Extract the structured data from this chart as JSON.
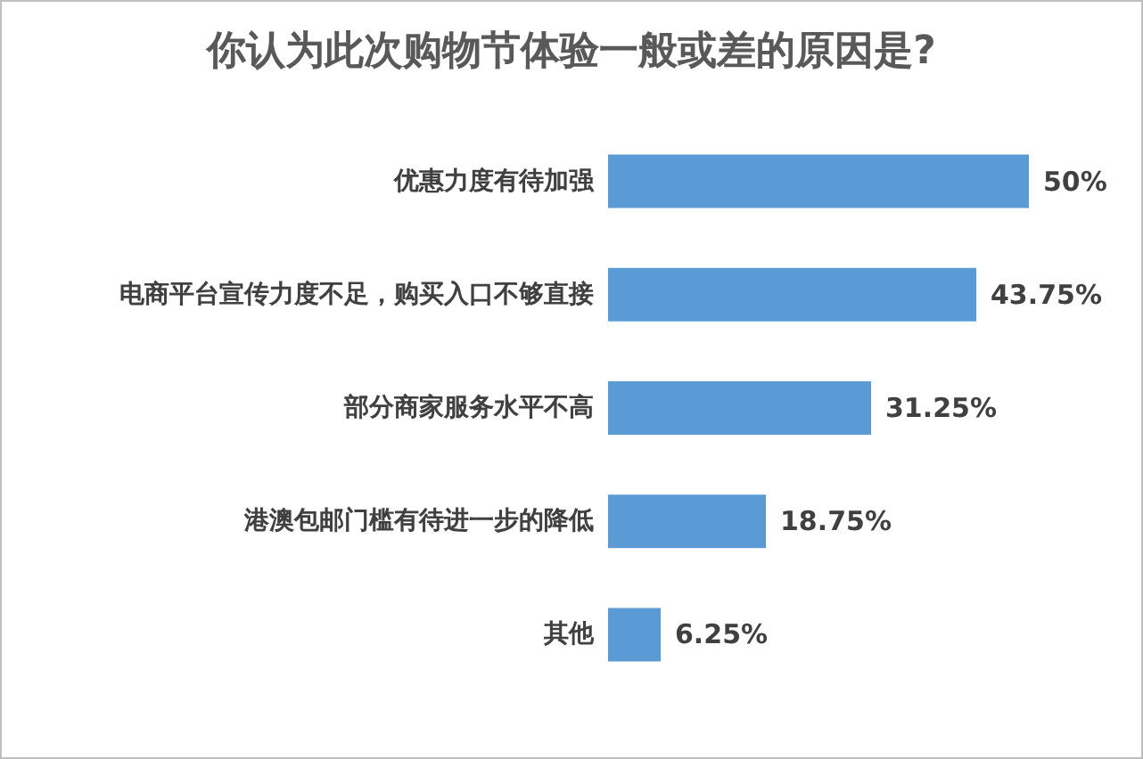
{
  "chart_data": {
    "type": "bar",
    "orientation": "horizontal",
    "title": "你认为此次购物节体验一般或差的原因是?",
    "categories": [
      "优惠力度有待加强",
      "电商平台宣传力度不足，购买入口不够直接",
      "部分商家服务水平不高",
      "港澳包邮门槛有待进一步的降低",
      "其他"
    ],
    "values": [
      50,
      43.75,
      31.25,
      18.75,
      6.25
    ],
    "value_labels": [
      "50%",
      "43.75%",
      "31.25%",
      "18.75%",
      "6.25%"
    ],
    "color": "#5b9bd5"
  }
}
